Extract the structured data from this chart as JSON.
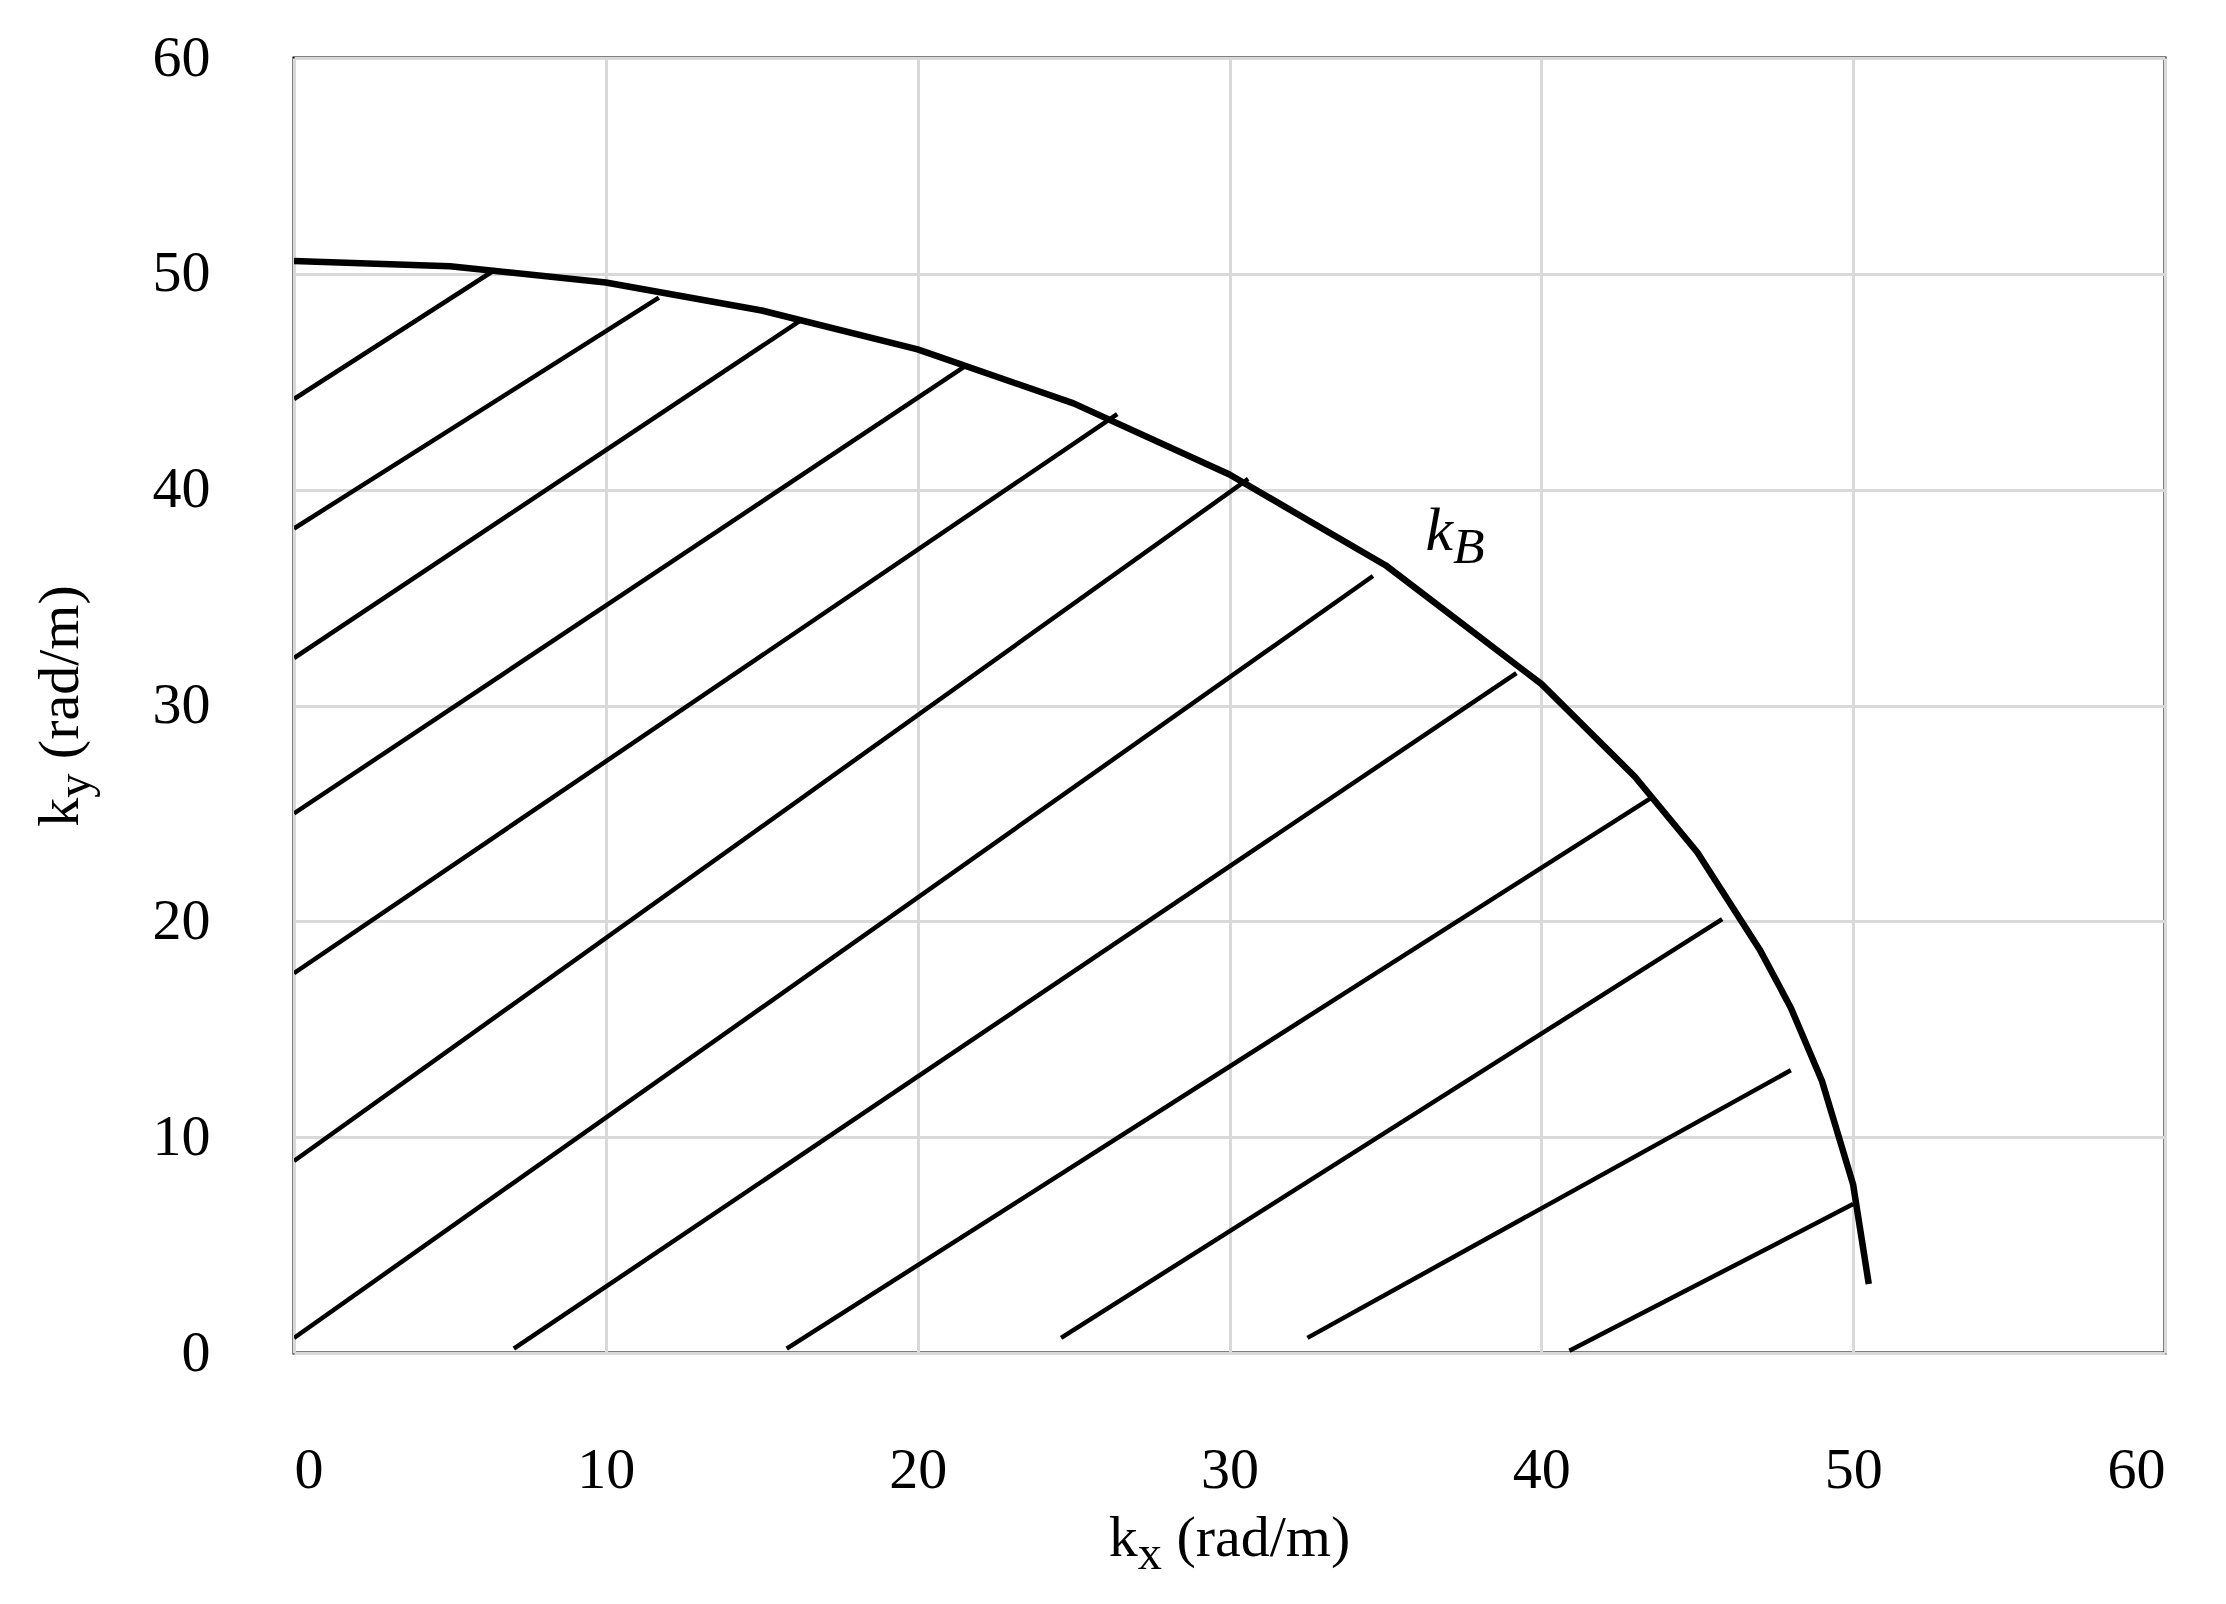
{
  "chart_data": {
    "type": "line",
    "xlabel": "k$_{x}$ (rad/m)",
    "ylabel": "k$_{y}$ (rad/m)",
    "xlim": [
      0,
      60
    ],
    "ylim": [
      0,
      60
    ],
    "xticks": [
      0,
      10,
      20,
      30,
      40,
      50,
      60
    ],
    "yticks": [
      0,
      10,
      20,
      30,
      40,
      50,
      60
    ],
    "grid": true,
    "marker": "none",
    "line_style": "solid",
    "series": [
      {
        "name": "k$_{B}$",
        "color": "#000000",
        "x": [
          0,
          5,
          10,
          15,
          20,
          25,
          30,
          35,
          40,
          43,
          45,
          47,
          48,
          49,
          50,
          50.5
        ],
        "values": [
          50.6,
          50.35,
          49.6,
          48.3,
          46.5,
          44.0,
          40.7,
          36.5,
          31.0,
          26.7,
          23.2,
          18.7,
          16.0,
          12.6,
          7.8,
          3.2
        ]
      },
      {
        "color": "#000000",
        "x": [
          0,
          6.46
        ],
        "values": [
          44.2,
          50.2
        ]
      },
      {
        "color": "#000000",
        "x": [
          0,
          11.7
        ],
        "values": [
          38.2,
          48.9
        ]
      },
      {
        "color": "#000000",
        "x": [
          0,
          16.2
        ],
        "values": [
          32.2,
          47.8
        ]
      },
      {
        "color": "#000000",
        "x": [
          0,
          21.5
        ],
        "values": [
          25.0,
          45.7
        ]
      },
      {
        "color": "#000000",
        "x": [
          0,
          26.4
        ],
        "values": [
          17.6,
          43.5
        ]
      },
      {
        "color": "#000000",
        "x": [
          0,
          30.6
        ],
        "values": [
          8.9,
          40.5
        ]
      },
      {
        "color": "#000000",
        "x": [
          0,
          34.6
        ],
        "values": [
          0.7,
          36.0
        ]
      },
      {
        "color": "#000000",
        "x": [
          7.05,
          39.2
        ],
        "values": [
          0.2,
          31.5
        ]
      },
      {
        "color": "#000000",
        "x": [
          15.8,
          43.5
        ],
        "values": [
          0.2,
          25.7
        ]
      },
      {
        "color": "#000000",
        "x": [
          24.6,
          45.8
        ],
        "values": [
          0.7,
          20.1
        ]
      },
      {
        "color": "#000000",
        "x": [
          32.5,
          48.0
        ],
        "values": [
          0.7,
          13.1
        ]
      },
      {
        "color": "#000000",
        "x": [
          40.9,
          50.0
        ],
        "values": [
          0.1,
          6.9
        ]
      }
    ]
  }
}
